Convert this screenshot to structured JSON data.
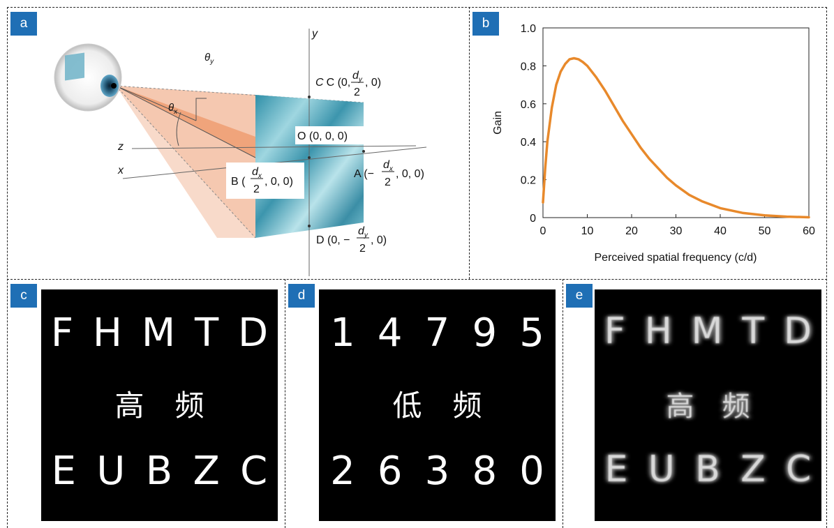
{
  "panels": {
    "a": {
      "badge": "a",
      "labels": {
        "theta_x": "θ",
        "theta_x_sub": "x",
        "theta_y": "θ",
        "theta_y_sub": "y",
        "axis_y": "y",
        "axis_z": "z",
        "axis_x": "x",
        "C_pre": "C (0,",
        "C_num": "d",
        "C_num_sub": "y",
        "C_den": "2",
        "C_post": ", 0)",
        "O": "O (0, 0, 0)",
        "A_pre": "A (−",
        "A_num": "d",
        "A_num_sub": "x",
        "A_den": "2",
        "A_post": ", 0, 0)",
        "B_pre": "B (",
        "B_num": "d",
        "B_num_sub": "x",
        "B_den": "2",
        "B_post": ", 0, 0)",
        "D_pre": "D (0, −",
        "D_num": "d",
        "D_num_sub": "y",
        "D_den": "2",
        "D_post": ", 0)"
      }
    },
    "b": {
      "badge": "b"
    },
    "c": {
      "badge": "c",
      "row1": [
        "F",
        "H",
        "M",
        "T",
        "D"
      ],
      "row2": [
        "高",
        "频"
      ],
      "row3": [
        "E",
        "U",
        "B",
        "Z",
        "C"
      ]
    },
    "d": {
      "badge": "d",
      "row1": [
        "1",
        "4",
        "7",
        "9",
        "5"
      ],
      "row2": [
        "低",
        "频"
      ],
      "row3": [
        "2",
        "6",
        "3",
        "8",
        "0"
      ]
    },
    "e": {
      "badge": "e",
      "row1": [
        "F",
        "H",
        "M",
        "T",
        "D"
      ],
      "row2": [
        "高",
        "频"
      ],
      "row3": [
        "E",
        "U",
        "B",
        "Z",
        "C"
      ]
    }
  },
  "chart_data": {
    "type": "line",
    "title": "",
    "xlabel": "Perceived spatial frequency (c/d)",
    "ylabel": "Gain",
    "xlim": [
      0,
      60
    ],
    "ylim": [
      0,
      1.0
    ],
    "xticks": [
      "0",
      "10",
      "20",
      "30",
      "40",
      "50",
      "60"
    ],
    "yticks": [
      "0",
      "0.2",
      "0.4",
      "0.6",
      "0.8",
      "1.0"
    ],
    "grid": false,
    "series": [
      {
        "color": "#e8892b",
        "x": [
          0,
          0.5,
          1,
          2,
          3,
          4,
          5,
          6,
          7,
          8,
          9,
          10,
          12,
          14,
          16,
          18,
          20,
          22,
          24,
          26,
          28,
          30,
          33,
          36,
          40,
          45,
          50,
          55,
          60
        ],
        "y": [
          0.08,
          0.26,
          0.4,
          0.58,
          0.7,
          0.77,
          0.81,
          0.835,
          0.84,
          0.835,
          0.82,
          0.8,
          0.74,
          0.67,
          0.59,
          0.51,
          0.44,
          0.37,
          0.31,
          0.26,
          0.21,
          0.17,
          0.12,
          0.085,
          0.05,
          0.025,
          0.012,
          0.005,
          0.002
        ]
      }
    ]
  }
}
